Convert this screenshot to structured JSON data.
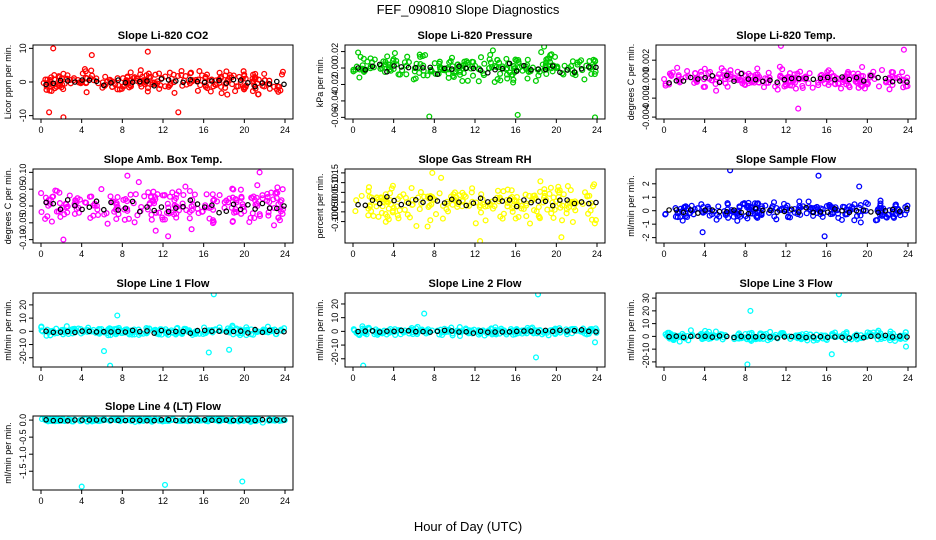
{
  "figure_title": "FEF_090810  Slope Diagnostics",
  "xlabel": "Hour of Day (UTC)",
  "colors": {
    "background": "#ffffff",
    "axis": "#000000",
    "overlay": "#000000"
  },
  "chart_data": [
    {
      "type": "scatter",
      "title": "Slope Li-820 CO2",
      "ylabel": "Licor ppm per min.",
      "xlim": [
        0,
        24
      ],
      "xticks": [
        0,
        4,
        8,
        12,
        16,
        20,
        24
      ],
      "ylim": [
        -11,
        11
      ],
      "yticks": [
        -10,
        0,
        10
      ],
      "ytick_labels": [
        "-10",
        "0",
        "10"
      ],
      "color": "#ff0000",
      "spread": 2.2,
      "outliers": [
        [
          1.2,
          10
        ],
        [
          0.8,
          -9
        ],
        [
          2.2,
          -10.5
        ],
        [
          5,
          8
        ],
        [
          10.5,
          9
        ],
        [
          13.5,
          -9
        ]
      ]
    },
    {
      "type": "scatter",
      "title": "Slope Li-820 Pressure",
      "ylabel": "kPa per min.",
      "xlim": [
        0,
        24
      ],
      "xticks": [
        0,
        4,
        8,
        12,
        16,
        20,
        24
      ],
      "ylim": [
        -0.062,
        0.028
      ],
      "yticks": [
        -0.06,
        -0.04,
        -0.02,
        0,
        0.02
      ],
      "ytick_labels": [
        "-0.06",
        "-0.04",
        "-0.02",
        "0.00",
        "0.02"
      ],
      "color": "#00cc00",
      "spread": 0.011,
      "outliers": [
        [
          7.5,
          -0.059
        ],
        [
          16.2,
          -0.057
        ],
        [
          23.8,
          -0.06
        ],
        [
          18.8,
          0.026
        ]
      ]
    },
    {
      "type": "scatter",
      "title": "Slope Li-820 Temp.",
      "ylabel": "degrees C per min.",
      "xlim": [
        0,
        24
      ],
      "xticks": [
        0,
        4,
        8,
        12,
        16,
        20,
        24
      ],
      "ylim": [
        -0.0042,
        0.0036
      ],
      "yticks": [
        -0.004,
        -0.002,
        0,
        0.002
      ],
      "ytick_labels": [
        "-0.004",
        "-0.002",
        "0.000",
        "0.002"
      ],
      "color": "#ff00ff",
      "spread": 0.0008,
      "outliers": [
        [
          11.5,
          0.0035
        ],
        [
          23.6,
          0.0031
        ],
        [
          13.2,
          -0.0031
        ]
      ]
    },
    {
      "type": "scatter",
      "title": "Slope Amb. Box Temp.",
      "ylabel": "degrees C per min.",
      "xlim": [
        0,
        24
      ],
      "xticks": [
        0,
        4,
        8,
        12,
        16,
        20,
        24
      ],
      "ylim": [
        -0.11,
        0.11
      ],
      "yticks": [
        -0.1,
        -0.05,
        0,
        0.05,
        0.1
      ],
      "ytick_labels": [
        "-0.10",
        "-0.05",
        "0.00",
        "0.05",
        "0.10"
      ],
      "color": "#ff00ff",
      "spread": 0.038,
      "outliers": [
        [
          2.2,
          -0.1
        ],
        [
          8.5,
          0.09
        ],
        [
          12.5,
          -0.09
        ],
        [
          21.5,
          0.1
        ]
      ]
    },
    {
      "type": "scatter",
      "title": "Slope Gas Stream RH",
      "ylabel": "percent per min.",
      "xlim": [
        0,
        24
      ],
      "xticks": [
        0,
        4,
        8,
        12,
        16,
        20,
        24
      ],
      "ylim": [
        -0.21,
        0.17
      ],
      "yticks": [
        -0.1,
        -0.05,
        0,
        0.05,
        0.1,
        0.15
      ],
      "ytick_labels": [
        "-0.10",
        "-0.05",
        "0.00",
        "0.05",
        "0.10",
        "0.15"
      ],
      "color": "#ffff00",
      "spread": 0.06,
      "outliers": [
        [
          7.8,
          0.15
        ],
        [
          12.5,
          -0.2
        ],
        [
          20.5,
          -0.18
        ]
      ]
    },
    {
      "type": "scatter",
      "title": "Slope Sample Flow",
      "ylabel": "ml/min per min.",
      "xlim": [
        0,
        24
      ],
      "xticks": [
        0,
        4,
        8,
        12,
        16,
        20,
        24
      ],
      "ylim": [
        -2.4,
        3.1
      ],
      "yticks": [
        -2,
        -1,
        0,
        1,
        2
      ],
      "ytick_labels": [
        "-2",
        "-1",
        "0",
        "1",
        "2"
      ],
      "color": "#0000ff",
      "spread": 0.45,
      "outliers": [
        [
          6.5,
          3.0
        ],
        [
          15.2,
          2.6
        ],
        [
          19.2,
          1.8
        ],
        [
          15.8,
          -1.9
        ],
        [
          3.8,
          -1.6
        ]
      ]
    },
    {
      "type": "scatter",
      "title": "Slope Line 1 Flow",
      "ylabel": "ml/min per min.",
      "xlim": [
        0,
        24
      ],
      "xticks": [
        0,
        4,
        8,
        12,
        16,
        20,
        24
      ],
      "ylim": [
        -27,
        29
      ],
      "yticks": [
        -20,
        -10,
        0,
        10,
        20
      ],
      "ytick_labels": [
        "-20",
        "-10",
        "0",
        "10",
        "20"
      ],
      "color": "#00ffff",
      "spread": 2.2,
      "outliers": [
        [
          7.5,
          12
        ],
        [
          6.2,
          -15
        ],
        [
          17,
          28
        ],
        [
          6.8,
          -26
        ],
        [
          18.5,
          -14
        ],
        [
          16.5,
          -16
        ]
      ]
    },
    {
      "type": "scatter",
      "title": "Slope Line 2 Flow",
      "ylabel": "ml/min per min.",
      "xlim": [
        0,
        24
      ],
      "xticks": [
        0,
        4,
        8,
        12,
        16,
        20,
        24
      ],
      "ylim": [
        -26,
        28
      ],
      "yticks": [
        -20,
        -10,
        0,
        10,
        20
      ],
      "ytick_labels": [
        "-20",
        "-10",
        "0",
        "10",
        "20"
      ],
      "color": "#00ffff",
      "spread": 2.2,
      "outliers": [
        [
          1,
          -25
        ],
        [
          7,
          13
        ],
        [
          18.2,
          27
        ],
        [
          18,
          -19
        ],
        [
          23.8,
          -8
        ]
      ]
    },
    {
      "type": "scatter",
      "title": "Slope Line 3 Flow",
      "ylabel": "ml/min per min.",
      "xlim": [
        0,
        24
      ],
      "xticks": [
        0,
        4,
        8,
        12,
        16,
        20,
        24
      ],
      "ylim": [
        -24,
        34
      ],
      "yticks": [
        -20,
        -10,
        0,
        10,
        20,
        30
      ],
      "ytick_labels": [
        "-20",
        "-10",
        "0",
        "10",
        "20",
        "30"
      ],
      "color": "#00ffff",
      "spread": 2.5,
      "outliers": [
        [
          8.5,
          20
        ],
        [
          17.2,
          33
        ],
        [
          8.2,
          -22
        ],
        [
          16.5,
          -14
        ],
        [
          23.8,
          -8
        ]
      ]
    },
    {
      "type": "scatter",
      "title": "Slope Line 4 (LT) Flow",
      "ylabel": "ml/min per min.",
      "xlim": [
        0,
        24
      ],
      "xticks": [
        0,
        4,
        8,
        12,
        16,
        20,
        24
      ],
      "ylim": [
        -2.05,
        0.12
      ],
      "yticks": [
        -1.5,
        -1,
        -0.5,
        0
      ],
      "ytick_labels": [
        "-1.5",
        "-1.0",
        "-0.5",
        "0.0"
      ],
      "color": "#00ffff",
      "spread": 0.035,
      "outliers": [
        [
          4,
          -1.95
        ],
        [
          12.2,
          -1.9
        ],
        [
          19.8,
          -1.8
        ]
      ]
    }
  ]
}
